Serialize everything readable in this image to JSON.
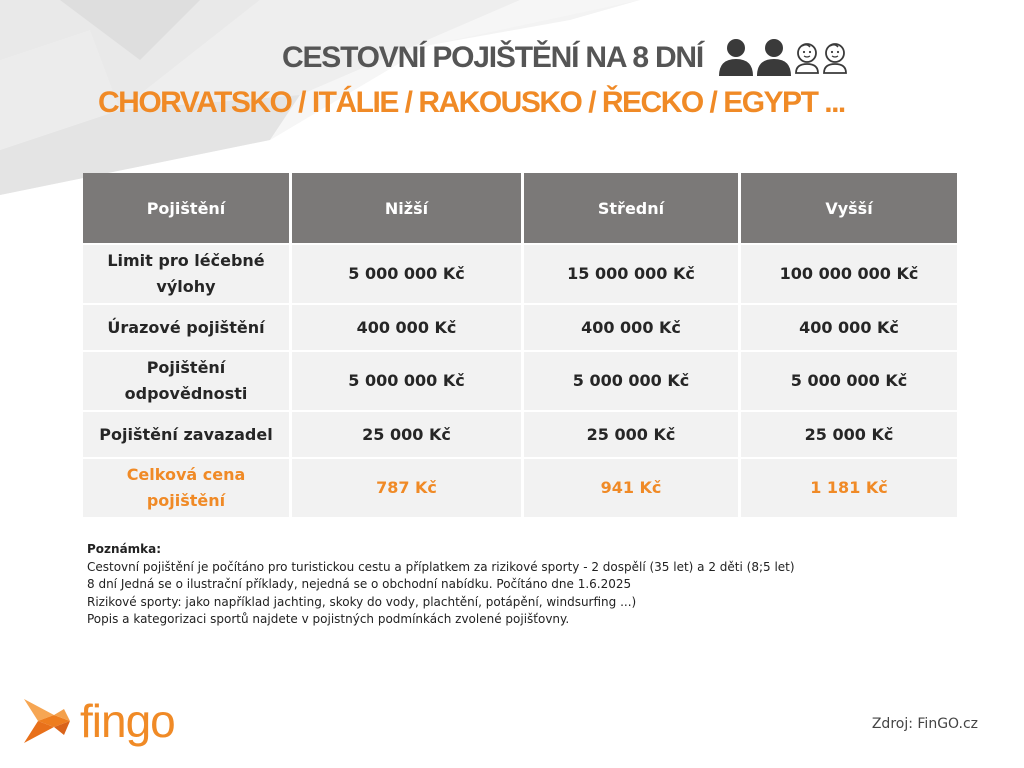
{
  "header": {
    "title": "CESTOVNÍ POJIŠTĚNÍ NA 8 DNÍ",
    "subtitle": "CHORVATSKO / ITÁLIE / RAKOUSKO / ŘECKO / EGYPT ...",
    "icons": [
      "adult-icon",
      "adult-icon",
      "child-icon",
      "child-icon"
    ]
  },
  "table": {
    "columns": [
      "Pojištění",
      "Nižší",
      "Střední",
      "Vyšší"
    ],
    "rows": [
      {
        "label": "Limit pro léčebné výlohy",
        "values": [
          "5 000 000 Kč",
          "15 000 000 Kč",
          "100 000 000 Kč"
        ]
      },
      {
        "label": "Úrazové pojištění",
        "values": [
          "400 000 Kč",
          "400 000 Kč",
          "400 000 Kč"
        ]
      },
      {
        "label": "Pojištění odpovědnosti",
        "values": [
          "5 000 000 Kč",
          "5 000 000 Kč",
          "5 000 000 Kč"
        ]
      },
      {
        "label": "Pojištění zavazadel",
        "values": [
          "25 000 Kč",
          "25 000 Kč",
          "25 000 Kč"
        ]
      }
    ],
    "total": {
      "label": "Celková cena pojištění",
      "values": [
        "787 Kč",
        "941 Kč",
        "1 181 Kč"
      ]
    }
  },
  "note": {
    "heading": "Poznámka:",
    "lines": [
      "Cestovní pojištění je počítáno pro turistickou cestu a příplatkem za rizikové sporty - 2 dospělí (35 let) a 2 děti (8;5 let)",
      "8 dní Jedná se o ilustrační příklady, nejedná se o obchodní nabídku. Počítáno dne 1.6.2025",
      "Rizikové sporty: jako například jachting, skoky do vody, plachtění, potápění, windsurfing ...)",
      "Popis a kategorizaci sportů najdete v pojistných podmínkách zvolené pojišťovny."
    ]
  },
  "footer": {
    "logo_text": "fingo",
    "source": "Zdroj: FinGO.cz"
  },
  "colors": {
    "accent": "#f08a26",
    "title": "#555555",
    "header_bg": "#7b7978",
    "cell_bg": "#f2f2f2"
  }
}
